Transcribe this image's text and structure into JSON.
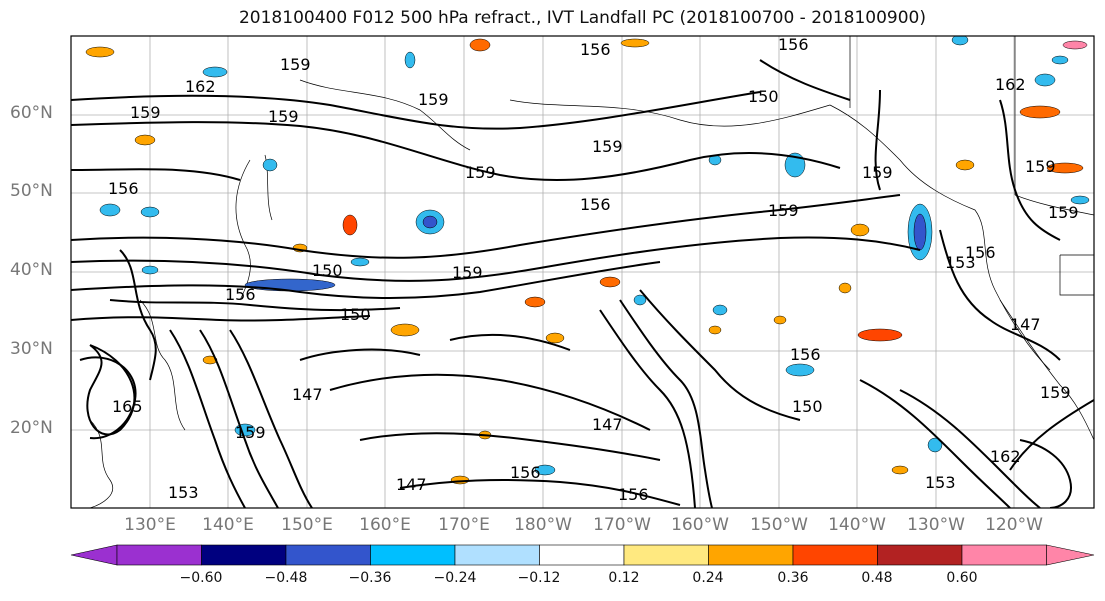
{
  "title": "2018100400 F012 500 hPa refract., IVT Landfall PC (2018100700 - 2018100900)",
  "latitude_labels": [
    "60°N",
    "50°N",
    "40°N",
    "30°N",
    "20°N"
  ],
  "longitude_labels": [
    "130°E",
    "140°E",
    "150°E",
    "160°E",
    "170°E",
    "180°W",
    "170°W",
    "160°W",
    "150°W",
    "140°W",
    "130°W",
    "120°W"
  ],
  "colorbar": {
    "tick_labels": [
      "−0.60",
      "−0.48",
      "−0.36",
      "−0.24",
      "−0.12",
      "0.12",
      "0.24",
      "0.36",
      "0.48",
      "0.60"
    ],
    "colors": [
      "#9b30d0",
      "#00007f",
      "#3355cc",
      "#00bfff",
      "#b0e0ff",
      "#ffffff",
      "#ffe980",
      "#ffa500",
      "#ff4500",
      "#b22222",
      "#ff85a8"
    ]
  },
  "contour_labels": [
    "159",
    "162",
    "159",
    "159",
    "159",
    "156",
    "159",
    "156",
    "150",
    "156",
    "159",
    "150",
    "147",
    "150",
    "147",
    "156",
    "159",
    "153",
    "156",
    "159",
    "159",
    "159",
    "156",
    "159",
    "162",
    "147",
    "153",
    "156",
    "159",
    "162",
    "165",
    "150",
    "147",
    "153",
    "156",
    "159",
    "156"
  ],
  "colors": {
    "contour": "#000000",
    "grid": "#b0b0b0",
    "coastline": "#000000",
    "negative_fill": "#33bbee",
    "positive_fill": "#ffa500"
  }
}
